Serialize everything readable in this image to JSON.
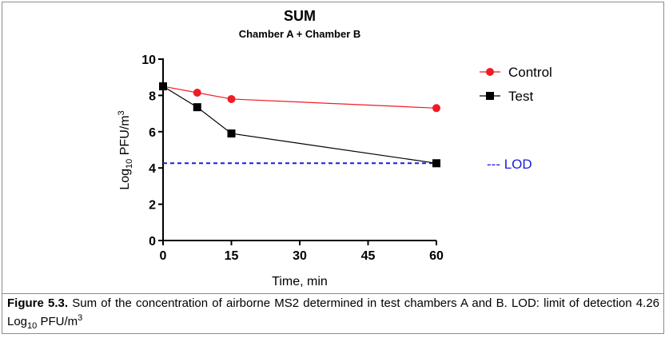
{
  "chart_data": {
    "type": "line",
    "title": "SUM",
    "subtitle": "Chamber A + Chamber B",
    "xlabel": "Time, min",
    "ylabel": {
      "base": "Log",
      "sub": "10",
      "mid": " PFU/m",
      "sup": "3"
    },
    "xlim": [
      0,
      60
    ],
    "ylim": [
      0,
      10
    ],
    "xticks": [
      0,
      15,
      30,
      45,
      60
    ],
    "yticks": [
      0,
      2,
      4,
      6,
      8,
      10
    ],
    "xtick_labels": [
      "0",
      "15",
      "30",
      "45",
      "60"
    ],
    "ytick_labels": [
      "0",
      "2",
      "4",
      "6",
      "8",
      "10"
    ],
    "grid": false,
    "legend_position": "right",
    "series": [
      {
        "name": "Control",
        "color": "#ee1c25",
        "marker": "circle",
        "x": [
          0,
          7.5,
          15,
          60
        ],
        "y": [
          8.5,
          8.15,
          7.8,
          7.3
        ]
      },
      {
        "name": "Test",
        "color": "#000000",
        "marker": "square",
        "x": [
          0,
          7.5,
          15,
          60
        ],
        "y": [
          8.5,
          7.35,
          5.9,
          4.26
        ]
      }
    ],
    "reference_lines": [
      {
        "name": "LOD",
        "legend_label": "--- LOD",
        "y": 4.26,
        "color": "#1b1bdc",
        "style": "dashed"
      }
    ]
  },
  "caption": {
    "label": "Figure 5.3.",
    "text_before_sub": " Sum of the concentration of airborne MS2 determined in test chambers A and B. LOD: limit of detection 4.26 Log",
    "sub": "10",
    "text_after_sub": " PFU/m",
    "sup": "3"
  }
}
